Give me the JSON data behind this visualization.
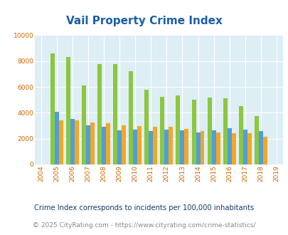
{
  "title": "Vail Property Crime Index",
  "years": [
    2004,
    2005,
    2006,
    2007,
    2008,
    2009,
    2010,
    2011,
    2012,
    2013,
    2014,
    2015,
    2016,
    2017,
    2018,
    2019
  ],
  "vail": [
    null,
    8600,
    8300,
    6100,
    7750,
    7750,
    7200,
    5800,
    5250,
    5350,
    5000,
    5200,
    5150,
    4500,
    3750,
    null
  ],
  "colorado": [
    null,
    4100,
    3500,
    3050,
    2900,
    2650,
    2700,
    2600,
    2700,
    2650,
    2500,
    2650,
    2800,
    2700,
    2600,
    null
  ],
  "national": [
    null,
    3400,
    3400,
    3250,
    3200,
    3050,
    2950,
    2900,
    2900,
    2750,
    2600,
    2500,
    2450,
    2400,
    2150,
    null
  ],
  "vail_color": "#8dc63f",
  "colorado_color": "#4d9fdb",
  "national_color": "#f5a623",
  "bg_color": "#ddeef5",
  "grid_color": "#ffffff",
  "ylim": [
    0,
    10000
  ],
  "yticks": [
    0,
    2000,
    4000,
    6000,
    8000,
    10000
  ],
  "bar_width": 0.27,
  "title_color": "#1a5fa8",
  "tick_color": "#cc6600",
  "footnote1": "Crime Index corresponds to incidents per 100,000 inhabitants",
  "footnote2": "© 2025 CityRating.com - https://www.cityrating.com/crime-statistics/",
  "footnote1_color": "#1a3a6b",
  "footnote2_color": "#888888",
  "legend_label_color": "#333333"
}
